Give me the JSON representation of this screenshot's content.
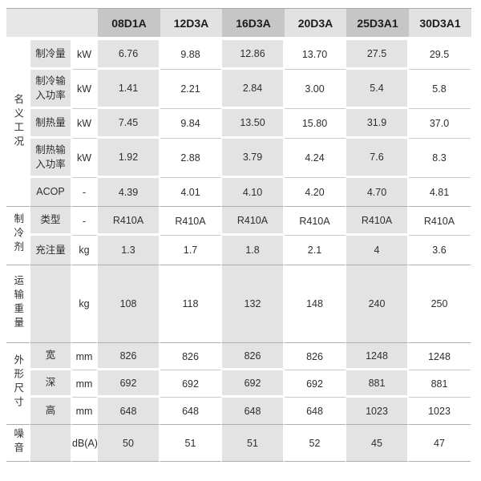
{
  "models": [
    "08D1A",
    "12D3A",
    "16D3A",
    "20D3A",
    "25D3A1",
    "30D3A1"
  ],
  "groups": [
    {
      "label": "名义工况",
      "rows": [
        {
          "name": "制冷量",
          "unit": "kW",
          "values": [
            "6.76",
            "9.88",
            "12.86",
            "13.70",
            "27.5",
            "29.5"
          ]
        },
        {
          "name": "制冷输入功率",
          "unit": "kW",
          "values": [
            "1.41",
            "2.21",
            "2.84",
            "3.00",
            "5.4",
            "5.8"
          ]
        },
        {
          "name": "制热量",
          "unit": "kW",
          "values": [
            "7.45",
            "9.84",
            "13.50",
            "15.80",
            "31.9",
            "37.0"
          ]
        },
        {
          "name": "制热输入功率",
          "unit": "kW",
          "values": [
            "1.92",
            "2.88",
            "3.79",
            "4.24",
            "7.6",
            "8.3"
          ]
        },
        {
          "name": "ACOP",
          "unit": "-",
          "values": [
            "4.39",
            "4.01",
            "4.10",
            "4.20",
            "4.70",
            "4.81"
          ]
        }
      ]
    },
    {
      "label": "制冷剂",
      "rows": [
        {
          "name": "类型",
          "unit": "-",
          "values": [
            "R410A",
            "R410A",
            "R410A",
            "R410A",
            "R410A",
            "R410A"
          ]
        },
        {
          "name": "充注量",
          "unit": "kg",
          "values": [
            "1.3",
            "1.7",
            "1.8",
            "2.1",
            "4",
            "3.6"
          ]
        }
      ]
    },
    {
      "label": "运输重量",
      "rows": [
        {
          "name": "",
          "unit": "kg",
          "values": [
            "108",
            "118",
            "132",
            "148",
            "240",
            "250"
          ]
        }
      ]
    },
    {
      "label": "外形尺寸",
      "rows": [
        {
          "name": "宽",
          "unit": "mm",
          "values": [
            "826",
            "826",
            "826",
            "826",
            "1248",
            "1248"
          ]
        },
        {
          "name": "深",
          "unit": "mm",
          "values": [
            "692",
            "692",
            "692",
            "692",
            "881",
            "881"
          ]
        },
        {
          "name": "高",
          "unit": "mm",
          "values": [
            "648",
            "648",
            "648",
            "648",
            "1023",
            "1023"
          ]
        }
      ]
    },
    {
      "label": "噪音",
      "rows": [
        {
          "name": "",
          "unit": "dB(A)",
          "values": [
            "50",
            "51",
            "51",
            "52",
            "45",
            "47"
          ]
        }
      ]
    }
  ],
  "colors": {
    "header_dark": "#c6c6c6",
    "header_light": "#e2e2e2",
    "header_corner": "#e7e7e7",
    "cell_shade": "#e3e3e3",
    "group_line": "#adadad",
    "row_line": "#cbcbcb",
    "text": "#2e2e2e"
  },
  "chart_data": {
    "type": "table",
    "columns": [
      "",
      "",
      "",
      "08D1A",
      "12D3A",
      "16D3A",
      "20D3A",
      "25D3A1",
      "30D3A1"
    ],
    "rows": [
      [
        "名义工况",
        "制冷量",
        "kW",
        "6.76",
        "9.88",
        "12.86",
        "13.70",
        "27.5",
        "29.5"
      ],
      [
        "名义工况",
        "制冷输入功率",
        "kW",
        "1.41",
        "2.21",
        "2.84",
        "3.00",
        "5.4",
        "5.8"
      ],
      [
        "名义工况",
        "制热量",
        "kW",
        "7.45",
        "9.84",
        "13.50",
        "15.80",
        "31.9",
        "37.0"
      ],
      [
        "名义工况",
        "制热输入功率",
        "kW",
        "1.92",
        "2.88",
        "3.79",
        "4.24",
        "7.6",
        "8.3"
      ],
      [
        "名义工况",
        "ACOP",
        "-",
        "4.39",
        "4.01",
        "4.10",
        "4.20",
        "4.70",
        "4.81"
      ],
      [
        "制冷剂",
        "类型",
        "-",
        "R410A",
        "R410A",
        "R410A",
        "R410A",
        "R410A",
        "R410A"
      ],
      [
        "制冷剂",
        "充注量",
        "kg",
        "1.3",
        "1.7",
        "1.8",
        "2.1",
        "4",
        "3.6"
      ],
      [
        "运输重量",
        "",
        "kg",
        "108",
        "118",
        "132",
        "148",
        "240",
        "250"
      ],
      [
        "外形尺寸",
        "宽",
        "mm",
        "826",
        "826",
        "826",
        "826",
        "1248",
        "1248"
      ],
      [
        "外形尺寸",
        "深",
        "mm",
        "692",
        "692",
        "692",
        "692",
        "881",
        "881"
      ],
      [
        "外形尺寸",
        "高",
        "mm",
        "648",
        "648",
        "648",
        "648",
        "1023",
        "1023"
      ],
      [
        "噪音",
        "",
        "dB(A)",
        "50",
        "51",
        "51",
        "52",
        "45",
        "47"
      ]
    ]
  }
}
